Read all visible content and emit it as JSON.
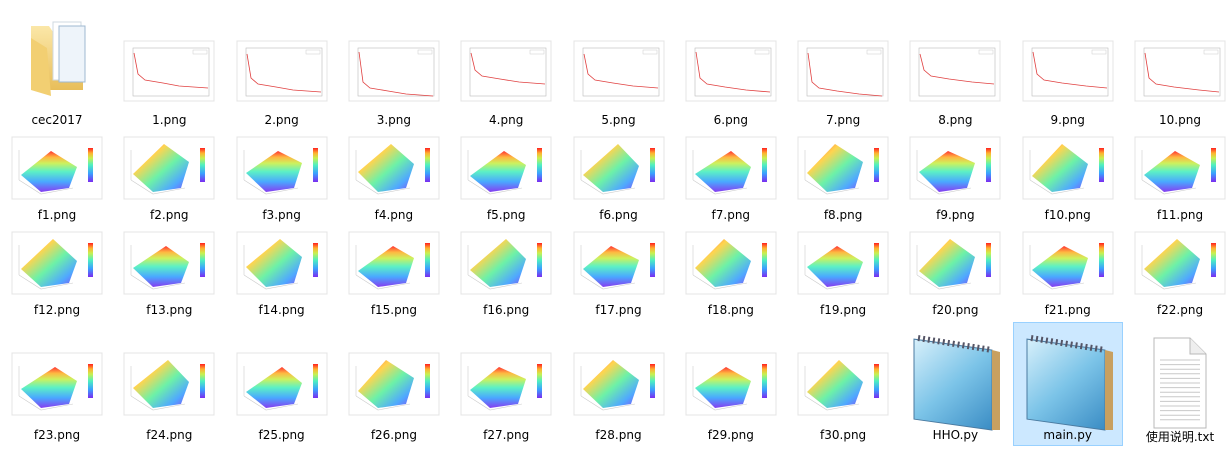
{
  "rows": [
    [
      {
        "name": "cec2017"
      },
      {
        "name": "1.png"
      },
      {
        "name": "2.png"
      },
      {
        "name": "3.png"
      },
      {
        "name": "4.png"
      },
      {
        "name": "5.png"
      },
      {
        "name": "6.png"
      },
      {
        "name": "7.png"
      },
      {
        "name": "8.png"
      },
      {
        "name": "9.png"
      },
      {
        "name": "10.png"
      }
    ],
    [
      {
        "name": "f1.png"
      },
      {
        "name": "f2.png"
      },
      {
        "name": "f3.png"
      },
      {
        "name": "f4.png"
      },
      {
        "name": "f5.png"
      },
      {
        "name": "f6.png"
      },
      {
        "name": "f7.png"
      },
      {
        "name": "f8.png"
      },
      {
        "name": "f9.png"
      },
      {
        "name": "f10.png"
      },
      {
        "name": "f11.png"
      }
    ],
    [
      {
        "name": "f12.png"
      },
      {
        "name": "f13.png"
      },
      {
        "name": "f14.png"
      },
      {
        "name": "f15.png"
      },
      {
        "name": "f16.png"
      },
      {
        "name": "f17.png"
      },
      {
        "name": "f18.png"
      },
      {
        "name": "f19.png"
      },
      {
        "name": "f20.png"
      },
      {
        "name": "f21.png"
      },
      {
        "name": "f22.png"
      }
    ],
    [
      {
        "name": "f23.png"
      },
      {
        "name": "f24.png"
      },
      {
        "name": "f25.png"
      },
      {
        "name": "f26.png"
      },
      {
        "name": "f27.png"
      },
      {
        "name": "f28.png"
      },
      {
        "name": "f29.png"
      },
      {
        "name": "f30.png"
      },
      {
        "name": "HHO.py"
      },
      {
        "name": "main.py",
        "selected": true
      },
      {
        "name": "使用说明.txt"
      }
    ]
  ]
}
